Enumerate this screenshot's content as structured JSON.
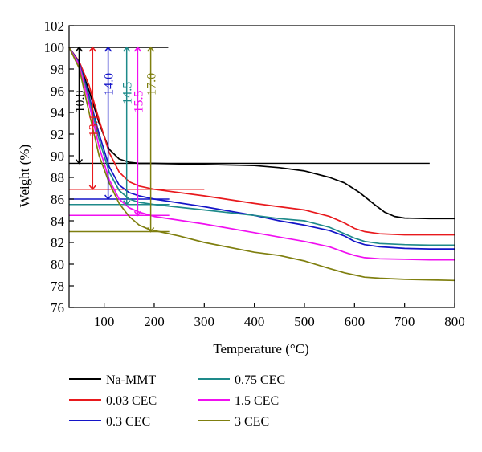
{
  "chart_data": {
    "type": "line",
    "xlabel": "Temperature (°C)",
    "ylabel": "Weight (%)",
    "xlim": [
      30,
      800
    ],
    "ylim": [
      76,
      102
    ],
    "xticks": [
      100,
      200,
      300,
      400,
      500,
      600,
      700,
      800
    ],
    "yticks": [
      76,
      78,
      80,
      82,
      84,
      86,
      88,
      90,
      92,
      94,
      96,
      98,
      100,
      102
    ],
    "grid": false,
    "legend_position": "below",
    "reference_line": {
      "y": 100,
      "x_range": [
        30,
        228
      ]
    },
    "series": [
      {
        "name": "Na-MMT",
        "color": "#000000",
        "x": [
          30,
          50,
          70,
          90,
          110,
          130,
          150,
          170,
          200,
          300,
          400,
          450,
          500,
          550,
          580,
          610,
          640,
          660,
          680,
          700,
          750,
          800
        ],
        "y": [
          100,
          98.6,
          96,
          93,
          90.6,
          89.7,
          89.4,
          89.3,
          89.3,
          89.2,
          89.1,
          88.9,
          88.6,
          88.0,
          87.5,
          86.6,
          85.5,
          84.8,
          84.4,
          84.25,
          84.2,
          84.2
        ]
      },
      {
        "name": "0.03 CEC",
        "color": "#e8191d",
        "x": [
          30,
          50,
          70,
          90,
          110,
          130,
          150,
          170,
          200,
          300,
          400,
          450,
          500,
          550,
          580,
          600,
          620,
          650,
          700,
          750,
          800
        ],
        "y": [
          100,
          98.7,
          96.5,
          93.3,
          90.3,
          88.5,
          87.6,
          87.2,
          86.9,
          86.3,
          85.6,
          85.3,
          85.0,
          84.4,
          83.8,
          83.3,
          83.0,
          82.8,
          82.7,
          82.7,
          82.7
        ]
      },
      {
        "name": "0.3 CEC",
        "color": "#1414c8",
        "x": [
          30,
          50,
          70,
          90,
          110,
          130,
          150,
          170,
          200,
          300,
          400,
          450,
          500,
          550,
          580,
          600,
          620,
          650,
          700,
          750,
          800
        ],
        "y": [
          100,
          98.6,
          95.5,
          92.0,
          89.0,
          87.3,
          86.6,
          86.3,
          86.0,
          85.3,
          84.5,
          84.0,
          83.6,
          83.1,
          82.6,
          82.1,
          81.8,
          81.6,
          81.45,
          81.4,
          81.4
        ]
      },
      {
        "name": "0.75 CEC",
        "color": "#1e8a8a",
        "x": [
          30,
          50,
          70,
          90,
          110,
          130,
          150,
          170,
          200,
          300,
          400,
          450,
          500,
          550,
          580,
          600,
          620,
          650,
          700,
          750,
          800
        ],
        "y": [
          100,
          98.5,
          95.2,
          91.5,
          88.5,
          86.8,
          86.0,
          85.7,
          85.5,
          85.0,
          84.5,
          84.2,
          84.0,
          83.4,
          82.8,
          82.4,
          82.1,
          81.9,
          81.8,
          81.75,
          81.75
        ]
      },
      {
        "name": "1.5 CEC",
        "color": "#f00ff0",
        "x": [
          30,
          50,
          70,
          90,
          110,
          130,
          150,
          170,
          200,
          300,
          400,
          450,
          500,
          550,
          580,
          600,
          620,
          650,
          700,
          750,
          800
        ],
        "y": [
          100,
          98.4,
          94.8,
          90.8,
          87.8,
          86.0,
          85.2,
          84.8,
          84.4,
          83.7,
          82.9,
          82.5,
          82.1,
          81.6,
          81.1,
          80.8,
          80.6,
          80.5,
          80.45,
          80.4,
          80.4
        ]
      },
      {
        "name": "3 CEC",
        "color": "#7f7f0f",
        "x": [
          30,
          50,
          70,
          90,
          110,
          130,
          150,
          170,
          190,
          210,
          250,
          300,
          400,
          450,
          500,
          550,
          580,
          600,
          620,
          650,
          700,
          750,
          800
        ],
        "y": [
          100,
          98.1,
          94.0,
          90.0,
          87.5,
          85.6,
          84.4,
          83.6,
          83.2,
          83.0,
          82.6,
          82.0,
          81.1,
          80.8,
          80.3,
          79.6,
          79.2,
          79.0,
          78.8,
          78.7,
          78.6,
          78.55,
          78.5
        ]
      }
    ],
    "annotations": [
      {
        "series": "Na-MMT",
        "label": "10.8",
        "color": "#000000",
        "x": 50,
        "y_bottom": 89.3,
        "ref_line_x_end": 750,
        "label_y": 95.0
      },
      {
        "series": "0.03 CEC",
        "label": "13.1",
        "color": "#e8191d",
        "x": 77,
        "y_bottom": 86.9,
        "ref_line_x_end": 300,
        "label_y": 92.8
      },
      {
        "series": "0.3 CEC",
        "label": "14.0",
        "color": "#1414c8",
        "x": 108,
        "y_bottom": 86.0,
        "ref_line_x_end": 230,
        "label_y": 96.6
      },
      {
        "series": "0.75 CEC",
        "label": "14.5",
        "color": "#1e8a8a",
        "x": 145,
        "y_bottom": 85.5,
        "ref_line_x_end": 230,
        "label_y": 95.8
      },
      {
        "series": "1.5 CEC",
        "label": "15.5",
        "color": "#f00ff0",
        "x": 167,
        "y_bottom": 84.5,
        "ref_line_x_end": 230,
        "label_y": 95.0
      },
      {
        "series": "3 CEC",
        "label": "17.0",
        "color": "#7f7f0f",
        "x": 193,
        "y_bottom": 83.0,
        "ref_line_x_end": 230,
        "label_y": 96.6
      }
    ]
  }
}
